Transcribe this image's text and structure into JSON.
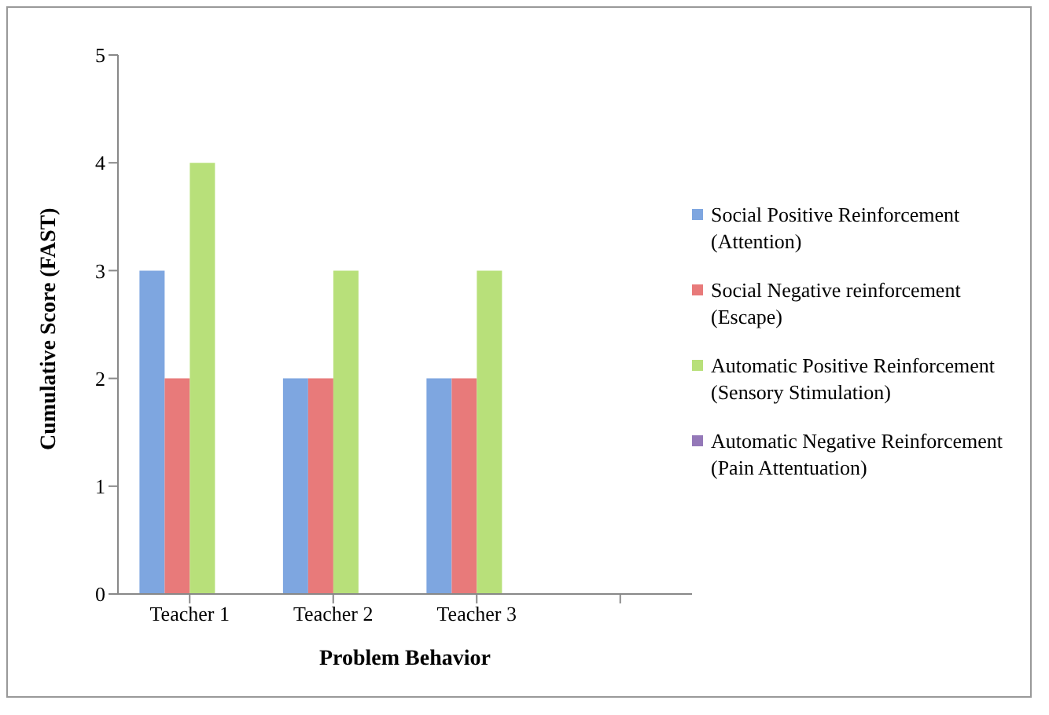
{
  "chart_data": {
    "type": "bar",
    "xlabel": "Problem Behavior",
    "ylabel": "Cumulative Score (FAST)",
    "categories": [
      "Teacher 1",
      "Teacher 2",
      "Teacher 3",
      null
    ],
    "series": [
      {
        "name": "Social Positive Reinforcement (Attention)",
        "color": "#7ea6e0",
        "values": [
          3,
          2,
          2,
          null
        ]
      },
      {
        "name": "Social Negative reinforcement (Escape)",
        "color": "#e87a7a",
        "values": [
          2,
          2,
          2,
          null
        ]
      },
      {
        "name": "Automatic Positive Reinforcement (Sensory Stimulation)",
        "color": "#b8e07a",
        "values": [
          4,
          3,
          3,
          null
        ]
      },
      {
        "name": "Automatic Negative Reinforcement (Pain Attentuation)",
        "color": "#9478b8",
        "values": [
          0,
          0,
          0,
          null
        ]
      }
    ],
    "ylim": [
      0,
      5
    ],
    "yticks": [
      0,
      1,
      2,
      3,
      4,
      5
    ],
    "grid": false,
    "legend": "right"
  }
}
